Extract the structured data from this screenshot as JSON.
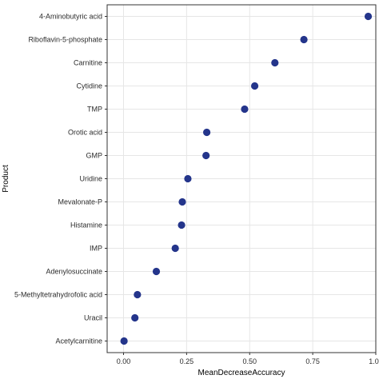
{
  "chart_data": {
    "type": "scatter",
    "xlabel": "MeanDecreaseAccuracy",
    "ylabel": "Product",
    "xlim": [
      -0.065,
      1.0
    ],
    "x_ticks": [
      0.0,
      0.25,
      0.5,
      0.75,
      1.0
    ],
    "x_tick_labels": [
      "0.00",
      "0.25",
      "0.50",
      "0.75",
      "1.00"
    ],
    "grid": true,
    "legend": "none",
    "point_color": "#24358b",
    "categories": [
      "4-Aminobutyric acid",
      "Riboflavin-5-phosphate",
      "Carnitine",
      "Cytidine",
      "TMP",
      "Orotic acid",
      "GMP",
      "Uridine",
      "Mevalonate-P",
      "Histamine",
      "IMP",
      "Adenylosuccinate",
      "5-Methyltetrahydrofolic acid",
      "Uracil",
      "Acetylcarnitine"
    ],
    "values": [
      0.97,
      0.715,
      0.6,
      0.52,
      0.48,
      0.33,
      0.327,
      0.255,
      0.233,
      0.23,
      0.205,
      0.13,
      0.055,
      0.045,
      0.002
    ]
  }
}
